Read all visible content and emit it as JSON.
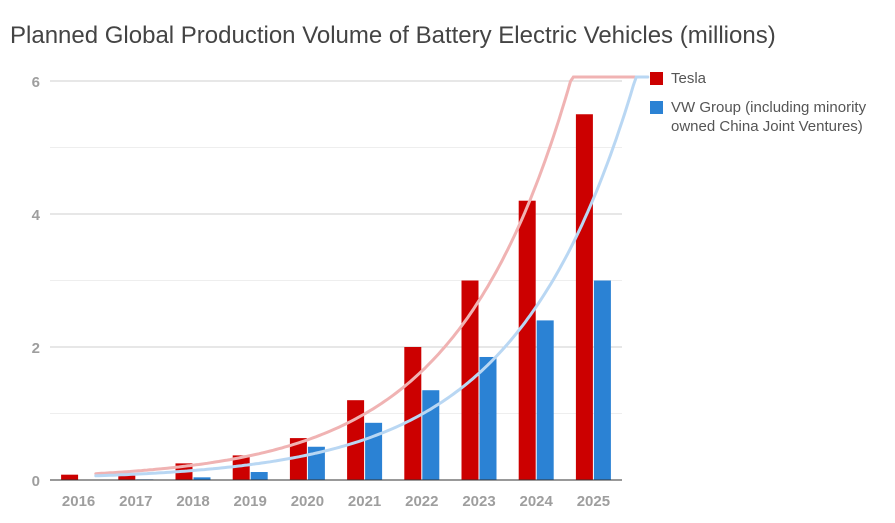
{
  "chart_data": {
    "type": "bar",
    "title": "Planned Global Production Volume of Battery Electric Vehicles (millions)",
    "xlabel": "",
    "ylabel": "",
    "categories": [
      "2016",
      "2017",
      "2018",
      "2019",
      "2020",
      "2021",
      "2022",
      "2023",
      "2024",
      "2025"
    ],
    "ylim": [
      0,
      6
    ],
    "yticks": [
      0,
      2,
      4,
      6
    ],
    "grid": true,
    "legend_position": "right",
    "series": [
      {
        "name": "Tesla",
        "color": "#cc0000",
        "values": [
          0.08,
          0.1,
          0.25,
          0.37,
          0.63,
          1.2,
          2.0,
          3.0,
          4.2,
          5.5
        ]
      },
      {
        "name": "VW Group (including minority owned China Joint Ventures)",
        "color": "#2b82d4",
        "values": [
          0.0,
          0.01,
          0.04,
          0.12,
          0.5,
          0.86,
          1.35,
          1.85,
          2.4,
          3.0
        ]
      }
    ],
    "trendlines": [
      {
        "series": "Tesla",
        "color": "#f0b3b3"
      },
      {
        "series": "VW Group (including minority owned China Joint Ventures)",
        "color": "#b9d7f3"
      }
    ]
  }
}
